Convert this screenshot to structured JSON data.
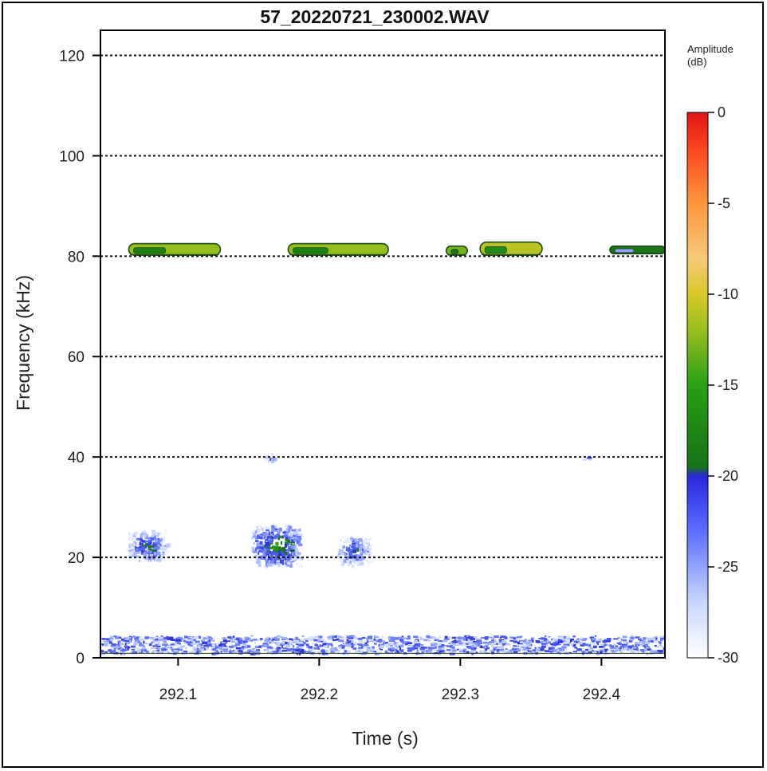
{
  "chart_data": {
    "type": "heatmap",
    "title": "57_20220721_230002.WAV",
    "xlabel": "Time (s)",
    "ylabel": "Frequency (kHz)",
    "xlim": [
      292.045,
      292.445
    ],
    "ylim": [
      0,
      125
    ],
    "xticks": [
      292.1,
      292.2,
      292.3,
      292.4
    ],
    "xtick_labels": [
      "292.1",
      "292.2",
      "292.3",
      "292.4"
    ],
    "yticks": [
      0,
      20,
      40,
      60,
      80,
      100,
      120
    ],
    "ytick_labels": [
      "0",
      "20",
      "40",
      "60",
      "80",
      "100",
      "120"
    ],
    "gridlines_y": [
      20,
      40,
      60,
      80,
      100,
      120
    ],
    "grid": "horizontal dotted",
    "colorbar": {
      "label_lines": [
        "Amplitude",
        "(dB)"
      ],
      "ticks": [
        0,
        -5,
        -10,
        -15,
        -20,
        -25,
        -30
      ],
      "tick_labels": [
        "0",
        "-5",
        "-10",
        "-15",
        "-20",
        "-25",
        "-30"
      ],
      "range": [
        -30,
        0
      ],
      "colors": [
        "#ffffff",
        "#3b3bff",
        "#1a7a1a",
        "#c8c020",
        "#ff7020",
        "#e01010"
      ]
    },
    "features": [
      {
        "kind": "call",
        "t0": 292.065,
        "t1": 292.13,
        "f0": 80.2,
        "f1": 82.5,
        "db": -12
      },
      {
        "kind": "call",
        "t0": 292.178,
        "t1": 292.249,
        "f0": 80.2,
        "f1": 82.5,
        "db": -12
      },
      {
        "kind": "call",
        "t0": 292.29,
        "t1": 292.305,
        "f0": 80.2,
        "f1": 82.0,
        "db": -13
      },
      {
        "kind": "call",
        "t0": 292.314,
        "t1": 292.358,
        "f0": 80.2,
        "f1": 82.8,
        "db": -11
      },
      {
        "kind": "call",
        "t0": 292.406,
        "t1": 292.445,
        "f0": 80.5,
        "f1": 82.0,
        "db": -19
      },
      {
        "kind": "blob",
        "t0": 292.064,
        "t1": 292.092,
        "f0": 19.5,
        "f1": 25.5,
        "db": -19
      },
      {
        "kind": "blob",
        "t0": 292.152,
        "t1": 292.186,
        "f0": 18.5,
        "f1": 26.5,
        "db": -17
      },
      {
        "kind": "blob",
        "t0": 292.212,
        "t1": 292.236,
        "f0": 18.5,
        "f1": 24.5,
        "db": -20
      },
      {
        "kind": "blob",
        "t0": 292.16,
        "t1": 292.17,
        "f0": 38.8,
        "f1": 41.0,
        "db": -23
      },
      {
        "kind": "blob",
        "t0": 292.385,
        "t1": 292.394,
        "f0": 39.0,
        "f1": 41.0,
        "db": -24
      },
      {
        "kind": "noise",
        "t0": 292.045,
        "t1": 292.445,
        "f0": 1.0,
        "f1": 4.5,
        "db": -23
      }
    ]
  }
}
